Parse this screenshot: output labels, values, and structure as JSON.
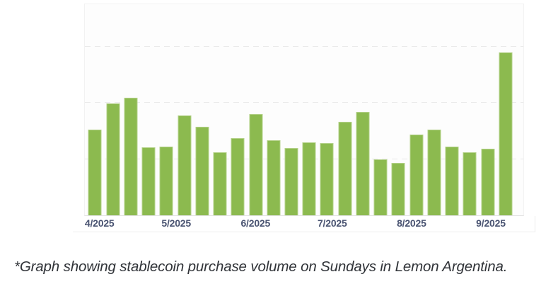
{
  "caption": {
    "text": "*Graph showing stablecoin purchase volume on Sundays in Lemon Argentina."
  },
  "chart_data": {
    "type": "bar",
    "title": "",
    "description": "Stablecoin purchase volume on Sundays in Lemon Argentina",
    "x_unit": "weekly bars (Sundays)",
    "y_unit": "purchase volume, y-axis unlabeled (relative units, 1 unit = one gridline step)",
    "x": [
      "2025-03-30",
      "2025-04-06",
      "2025-04-13",
      "2025-04-20",
      "2025-04-27",
      "2025-05-04",
      "2025-05-11",
      "2025-05-18",
      "2025-05-25",
      "2025-06-01",
      "2025-06-08",
      "2025-06-15",
      "2025-06-22",
      "2025-06-29",
      "2025-07-06",
      "2025-07-13",
      "2025-07-20",
      "2025-07-27",
      "2025-08-03",
      "2025-08-10",
      "2025-08-17",
      "2025-08-24",
      "2025-08-31",
      "2025-09-07"
    ],
    "values": [
      1.52,
      1.99,
      2.09,
      1.21,
      1.22,
      1.78,
      1.57,
      1.12,
      1.37,
      1.8,
      1.34,
      1.2,
      1.3,
      1.29,
      1.66,
      1.84,
      0.99,
      0.93,
      1.43,
      1.52,
      1.22,
      1.12,
      1.18,
      2.89
    ],
    "x_tick_labels": [
      "4/2025",
      "5/2025",
      "6/2025",
      "7/2025",
      "8/2025",
      "9/2025"
    ],
    "x_tick_dates": [
      "2025-04-01",
      "2025-05-01",
      "2025-06-01",
      "2025-07-01",
      "2025-08-01",
      "2025-09-01"
    ],
    "x_domain": [
      "2025-03-26",
      "2025-09-14"
    ],
    "ylim": [
      0,
      3.75
    ],
    "gridline_values": [
      1,
      2,
      3
    ],
    "grid": "horizontal-dashed",
    "legend_position": "none",
    "colors": {
      "bar": "#8CBA4F",
      "bar_edge": "#B5D28B",
      "tick_label": "#4A5472",
      "gridline": "#E9E9E9",
      "axis_line": "#E2E2E2",
      "caption_text": "#303338",
      "plot_background": "#FDFDFD",
      "page_background": "#FFFFFF"
    }
  }
}
